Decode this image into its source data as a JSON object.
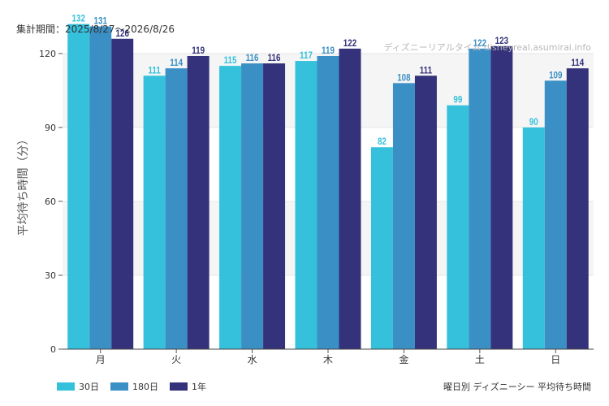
{
  "header": {
    "period": "集計期間：2025/8/27～2026/8/26",
    "watermark": "ディズニーリアルタイム disneyreal.asumirai.info"
  },
  "footer": {
    "caption": "曜日別 ディズニーシー 平均待ち時間"
  },
  "colors": {
    "series": [
      "#35c1dc",
      "#3a8fc4",
      "#33327a"
    ],
    "band": "#f5f5f5",
    "axis": "#333333"
  },
  "chart_data": {
    "type": "bar",
    "title": "曜日別 ディズニーシー 平均待ち時間",
    "ylabel": "平均待ち時間（分）",
    "xlabel": "",
    "categories": [
      "月",
      "火",
      "水",
      "木",
      "金",
      "土",
      "日"
    ],
    "ylim": [
      0,
      120
    ],
    "yticks": [
      0,
      30,
      60,
      90,
      120
    ],
    "grid": true,
    "legend_position": "bottom-left",
    "series": [
      {
        "name": "30日",
        "values": [
          132,
          111,
          115,
          117,
          82,
          99,
          90
        ]
      },
      {
        "name": "180日",
        "values": [
          131,
          114,
          116,
          119,
          108,
          122,
          109
        ]
      },
      {
        "name": "1年",
        "values": [
          126,
          119,
          116,
          122,
          111,
          123,
          114
        ]
      }
    ]
  }
}
